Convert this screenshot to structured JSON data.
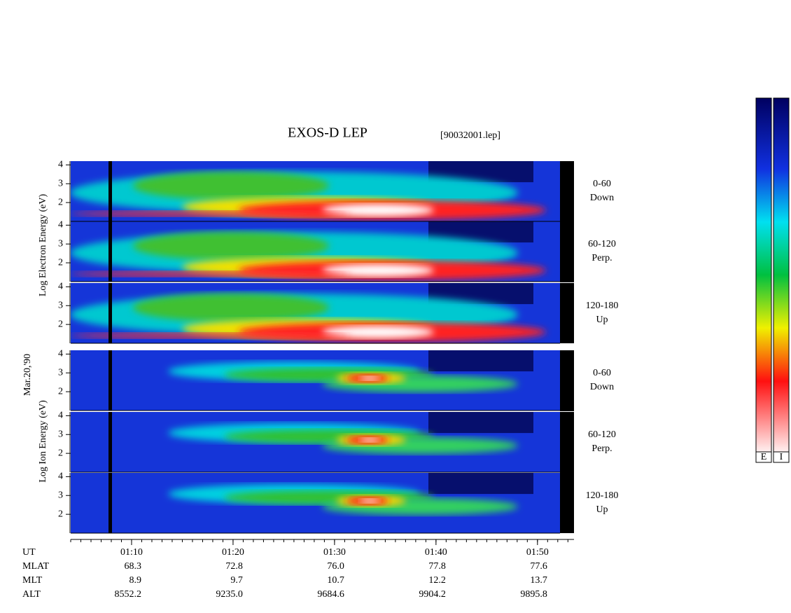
{
  "title": "EXOS-D LEP",
  "file": "[90032001.lep]",
  "date": "Mar.20,'90",
  "electron_axis_label": "Log Electron Energy (eV)",
  "ion_axis_label": "Log Ion Energy (eV)",
  "ylim": [
    1,
    4.2
  ],
  "panels": [
    {
      "yticks": [
        2,
        3,
        4
      ],
      "angle": "0-60",
      "direction": "Down"
    },
    {
      "yticks": [
        2,
        3,
        4
      ],
      "angle": "60-120",
      "direction": "Perp."
    },
    {
      "yticks": [
        2,
        3,
        4
      ],
      "angle": "120-180",
      "direction": "Up"
    },
    {
      "yticks": [
        2,
        3,
        4
      ],
      "angle": "0-60",
      "direction": "Down"
    },
    {
      "yticks": [
        2,
        3,
        4
      ],
      "angle": "60-120",
      "direction": "Perp."
    },
    {
      "yticks": [
        2,
        3,
        4
      ],
      "angle": "120-180",
      "direction": "Up"
    }
  ],
  "colorbar_labels": [
    "E",
    "I"
  ],
  "ut_label": "UT",
  "xlim": [
    64,
    113.6
  ],
  "xticks": [
    {
      "value": 70,
      "label": "01:10"
    },
    {
      "value": 80,
      "label": "01:20"
    },
    {
      "value": 90,
      "label": "01:30"
    },
    {
      "value": 100,
      "label": "01:40"
    },
    {
      "value": 110,
      "label": "01:50"
    }
  ],
  "rows": [
    {
      "name": "MLAT",
      "values": [
        "68.3",
        "72.8",
        "76.0",
        "77.8",
        "77.6"
      ]
    },
    {
      "name": "MLT",
      "values": [
        "8.9",
        "9.7",
        "10.7",
        "12.2",
        "13.7"
      ]
    },
    {
      "name": "ALT",
      "values": [
        "8552.2",
        "9235.0",
        "9684.6",
        "9904.2",
        "9895.8"
      ]
    }
  ]
}
